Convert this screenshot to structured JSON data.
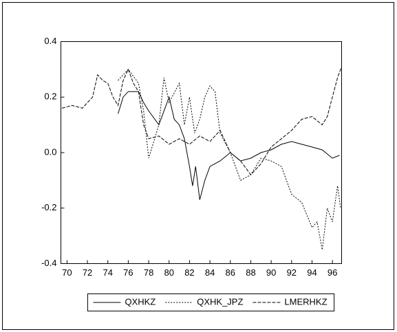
{
  "chart_data": {
    "type": "line",
    "xlim": [
      69.4,
      96.9
    ],
    "xticks": [
      70,
      72,
      74,
      76,
      78,
      80,
      82,
      84,
      86,
      88,
      90,
      92,
      94,
      96
    ],
    "ylim": [
      -0.4,
      0.4
    ],
    "yticks": [
      0.4,
      0.2,
      {
        "value": 0,
        "label": "0.0"
      },
      -0.2,
      -0.4
    ],
    "legend": "bottom",
    "series": [
      {
        "name": "QXHKZ",
        "color": "#000000",
        "dash": "none",
        "x": [
          75,
          75.5,
          76,
          77,
          77.5,
          78,
          79,
          80,
          80.5,
          81,
          81.5,
          82,
          82.3,
          82.6,
          83,
          83.5,
          84,
          85,
          86,
          87,
          88,
          89,
          90,
          91,
          92,
          93,
          94,
          95,
          96,
          96.7
        ],
        "values": [
          0.14,
          0.2,
          0.22,
          0.22,
          0.18,
          0.15,
          0.1,
          0.2,
          0.12,
          0.1,
          0.05,
          -0.05,
          -0.12,
          -0.05,
          -0.17,
          -0.1,
          -0.05,
          -0.03,
          0.0,
          -0.03,
          -0.02,
          0.0,
          0.01,
          0.03,
          0.04,
          0.03,
          0.02,
          0.01,
          -0.02,
          -0.01
        ]
      },
      {
        "name": "QXHK_JPZ",
        "color": "#000000",
        "dash": "2,2",
        "x": [
          75,
          76,
          77,
          77.5,
          78,
          79,
          79.5,
          80,
          81,
          81.5,
          82,
          82.5,
          83,
          83.5,
          84,
          84.5,
          85,
          86,
          87,
          88,
          89,
          90,
          91,
          92,
          93,
          94,
          94.5,
          95,
          95.5,
          96,
          96.5,
          96.8
        ],
        "values": [
          0.26,
          0.3,
          0.25,
          0.15,
          -0.02,
          0.1,
          0.27,
          0.18,
          0.25,
          0.1,
          0.2,
          0.07,
          0.12,
          0.2,
          0.24,
          0.22,
          0.07,
          0.0,
          -0.1,
          -0.08,
          -0.02,
          -0.03,
          -0.05,
          -0.15,
          -0.18,
          -0.27,
          -0.25,
          -0.35,
          -0.2,
          -0.25,
          -0.12,
          -0.2
        ]
      },
      {
        "name": "LMERHKZ",
        "color": "#000000",
        "dash": "5,2",
        "x": [
          69.5,
          70.5,
          71.5,
          72.5,
          73,
          73.5,
          74,
          74.5,
          75,
          75.5,
          76,
          76.5,
          77,
          77.5,
          78,
          79,
          80,
          81,
          82,
          83,
          84,
          85,
          86,
          87,
          88,
          89,
          90,
          91,
          92,
          93,
          94,
          95,
          95.5,
          96,
          96.5,
          96.9
        ],
        "values": [
          0.16,
          0.17,
          0.16,
          0.2,
          0.28,
          0.26,
          0.25,
          0.2,
          0.17,
          0.26,
          0.3,
          0.25,
          0.22,
          0.1,
          0.05,
          0.06,
          0.03,
          0.05,
          0.03,
          0.06,
          0.04,
          0.08,
          0.0,
          -0.03,
          -0.08,
          -0.04,
          0.02,
          0.05,
          0.08,
          0.12,
          0.13,
          0.1,
          0.13,
          0.2,
          0.27,
          0.31
        ]
      }
    ]
  }
}
